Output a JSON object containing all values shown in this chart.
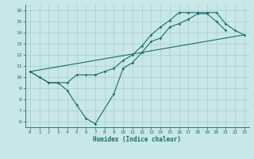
{
  "xlabel": "Humidex (Indice chaleur)",
  "bg_color": "#c8e8e8",
  "line_color": "#1a6b6b",
  "grid_color": "#a8cccc",
  "xlim": [
    -0.5,
    23.5
  ],
  "ylim": [
    5.5,
    16.5
  ],
  "xticks": [
    0,
    1,
    2,
    3,
    4,
    5,
    6,
    7,
    8,
    9,
    10,
    11,
    12,
    13,
    14,
    15,
    16,
    17,
    18,
    19,
    20,
    21,
    22,
    23
  ],
  "yticks": [
    6,
    7,
    8,
    9,
    10,
    11,
    12,
    13,
    14,
    15,
    16
  ],
  "line1": {
    "x": [
      0,
      1,
      2,
      3,
      4,
      5,
      6,
      7,
      9,
      10,
      11,
      12,
      13,
      14,
      15,
      16,
      17,
      18,
      19,
      20,
      21
    ],
    "y": [
      10.5,
      10.0,
      9.5,
      9.5,
      8.8,
      7.5,
      6.3,
      5.8,
      8.5,
      10.8,
      11.3,
      12.2,
      13.2,
      13.5,
      14.5,
      14.8,
      15.2,
      15.7,
      15.7,
      15.0,
      14.2
    ]
  },
  "line2": {
    "x": [
      0,
      1,
      2,
      3,
      4,
      5,
      6,
      7,
      8,
      9,
      10,
      11,
      12,
      13,
      14,
      15,
      16,
      17,
      18,
      19,
      20,
      21,
      22,
      23
    ],
    "y": [
      10.5,
      10.0,
      9.5,
      9.5,
      9.5,
      10.2,
      10.2,
      10.2,
      10.5,
      10.8,
      11.5,
      12.0,
      12.8,
      13.8,
      14.5,
      15.1,
      15.8,
      15.8,
      15.8,
      15.8,
      15.8,
      14.8,
      14.2,
      13.8
    ]
  },
  "line3": {
    "x": [
      0,
      23
    ],
    "y": [
      10.5,
      13.8
    ]
  }
}
